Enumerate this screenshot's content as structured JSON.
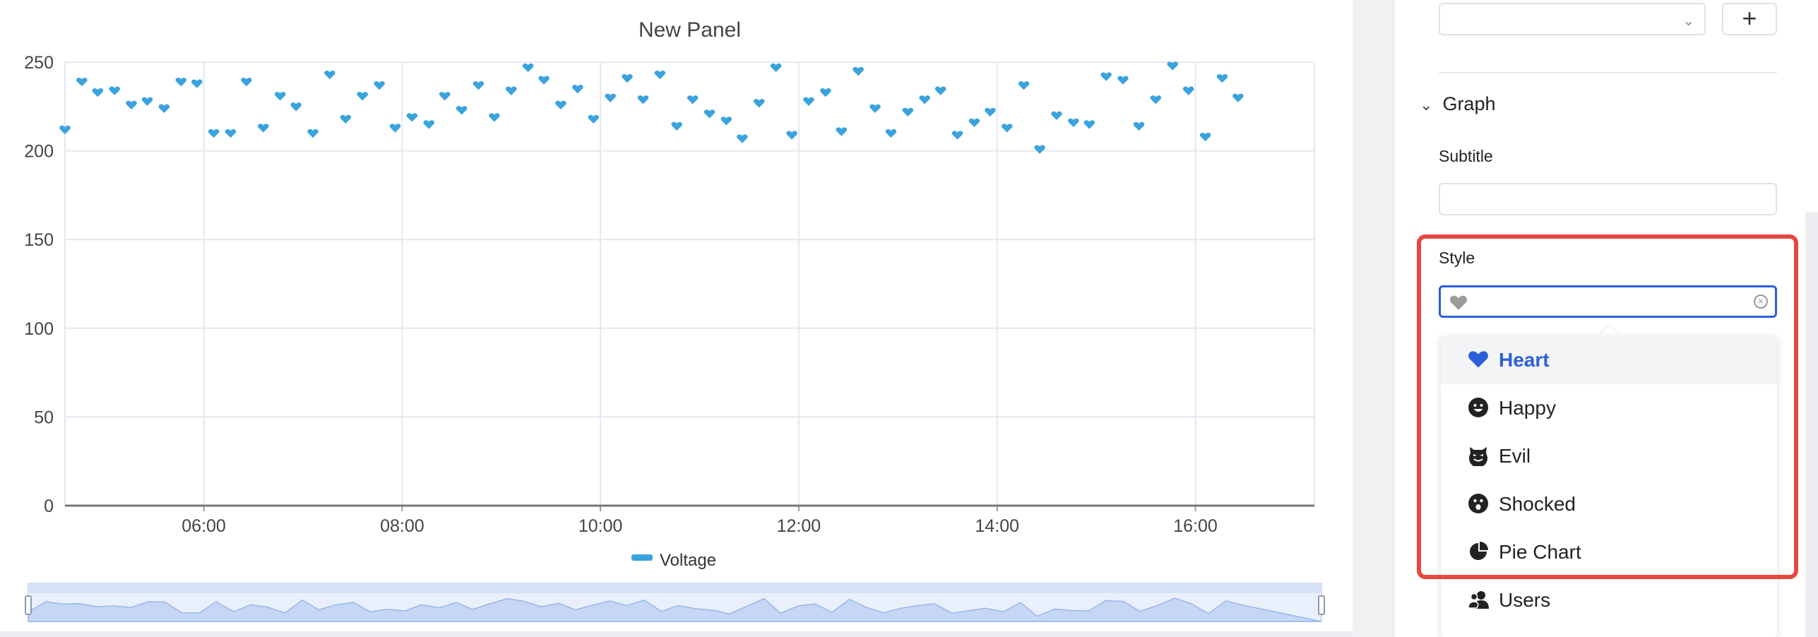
{
  "chart_data": {
    "type": "scatter",
    "title": "New Panel",
    "marker": "heart",
    "color": "#3aa3dd",
    "ylim": [
      0,
      250
    ],
    "yticks": [
      0,
      50,
      100,
      150,
      200,
      250
    ],
    "xlim_hours": [
      4.6,
      17.2
    ],
    "xticks": [
      "06:00",
      "08:00",
      "10:00",
      "12:00",
      "14:00",
      "16:00"
    ],
    "xtick_hours": [
      6,
      8,
      10,
      12,
      14,
      16
    ],
    "legend": [
      "Voltage"
    ],
    "series": [
      {
        "name": "Voltage",
        "x": [
          4.6,
          4.77,
          4.93,
          5.1,
          5.27,
          5.43,
          5.6,
          5.77,
          5.93,
          6.1,
          6.27,
          6.43,
          6.6,
          6.77,
          6.93,
          7.1,
          7.27,
          7.43,
          7.6,
          7.77,
          7.93,
          8.1,
          8.27,
          8.43,
          8.6,
          8.77,
          8.93,
          9.1,
          9.27,
          9.43,
          9.6,
          9.77,
          9.93,
          10.1,
          10.27,
          10.43,
          10.6,
          10.77,
          10.93,
          11.1,
          11.27,
          11.43,
          11.6,
          11.77,
          11.93,
          12.1,
          12.27,
          12.43,
          12.6,
          12.77,
          12.93,
          13.1,
          13.27,
          13.43,
          13.6,
          13.77,
          13.93,
          14.1,
          14.27,
          14.43,
          14.6,
          14.77,
          14.93,
          15.1,
          15.27,
          15.43,
          15.6,
          15.77,
          15.93,
          16.1,
          16.27,
          16.43
        ],
        "values": [
          212,
          239,
          233,
          234,
          226,
          228,
          224,
          239,
          238,
          210,
          210,
          239,
          213,
          231,
          225,
          210,
          243,
          218,
          231,
          237,
          213,
          219,
          215,
          231,
          223,
          237,
          219,
          234,
          247,
          240,
          226,
          235,
          218,
          230,
          241,
          229,
          243,
          214,
          229,
          221,
          217,
          207,
          227,
          247,
          209,
          228,
          233,
          211,
          245,
          224,
          210,
          222,
          229,
          234,
          209,
          216,
          222,
          213,
          237,
          201,
          220,
          216,
          215,
          242,
          240,
          214,
          229,
          248,
          234,
          208,
          241,
          230
        ]
      }
    ]
  },
  "panel": {
    "subtitle_label": "Subtitle",
    "section_title": "Graph",
    "style_label": "Style",
    "add_label": "+"
  },
  "dropdown": {
    "options": [
      {
        "label": "Heart",
        "icon": "heart-icon"
      },
      {
        "label": "Happy",
        "icon": "happy-face-icon"
      },
      {
        "label": "Evil",
        "icon": "evil-face-icon"
      },
      {
        "label": "Shocked",
        "icon": "shocked-face-icon"
      },
      {
        "label": "Pie Chart",
        "icon": "pie-chart-icon"
      },
      {
        "label": "Users",
        "icon": "users-icon"
      }
    ]
  }
}
